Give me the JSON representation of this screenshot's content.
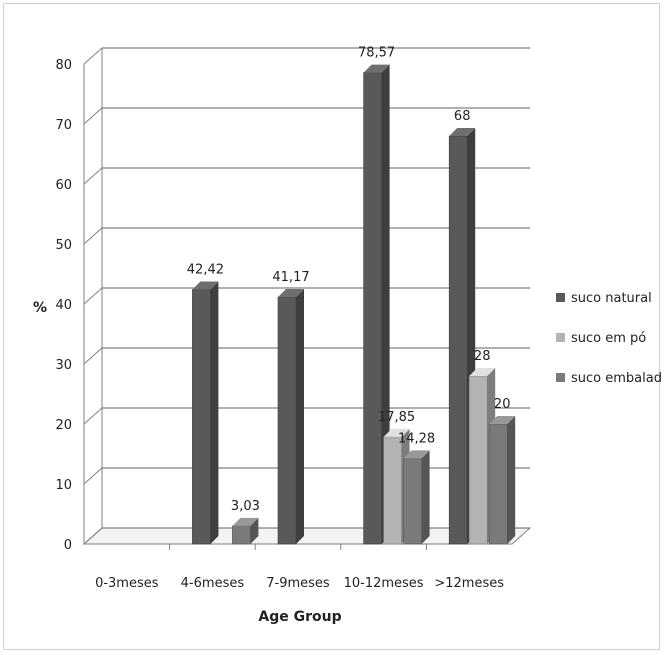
{
  "chart_data": {
    "type": "bar",
    "style": "3d-clustered-column",
    "xlabel": "Age Group",
    "ylabel": "%",
    "ylim": [
      0,
      80
    ],
    "yticks": [
      0,
      10,
      20,
      30,
      40,
      50,
      60,
      70,
      80
    ],
    "grid": true,
    "legend_position": "right",
    "categories": [
      "0-3meses",
      "4-6meses",
      "7-9meses",
      "10-12meses",
      ">12meses"
    ],
    "series": [
      {
        "name": "suco natural",
        "color": "#595959",
        "values": [
          null,
          42.42,
          41.17,
          78.57,
          68
        ],
        "labels": [
          "",
          "42,42",
          "41,17",
          "78,57",
          "68"
        ]
      },
      {
        "name": "suco em pó",
        "color": "#b3b3b3",
        "values": [
          null,
          null,
          null,
          17.85,
          28
        ],
        "labels": [
          "",
          "",
          "",
          "17,85",
          "28"
        ]
      },
      {
        "name": "suco embalado",
        "color": "#7a7a7a",
        "values": [
          null,
          3.03,
          null,
          14.28,
          20
        ],
        "labels": [
          "",
          "3,03",
          "",
          "14,28",
          "20"
        ]
      }
    ]
  }
}
